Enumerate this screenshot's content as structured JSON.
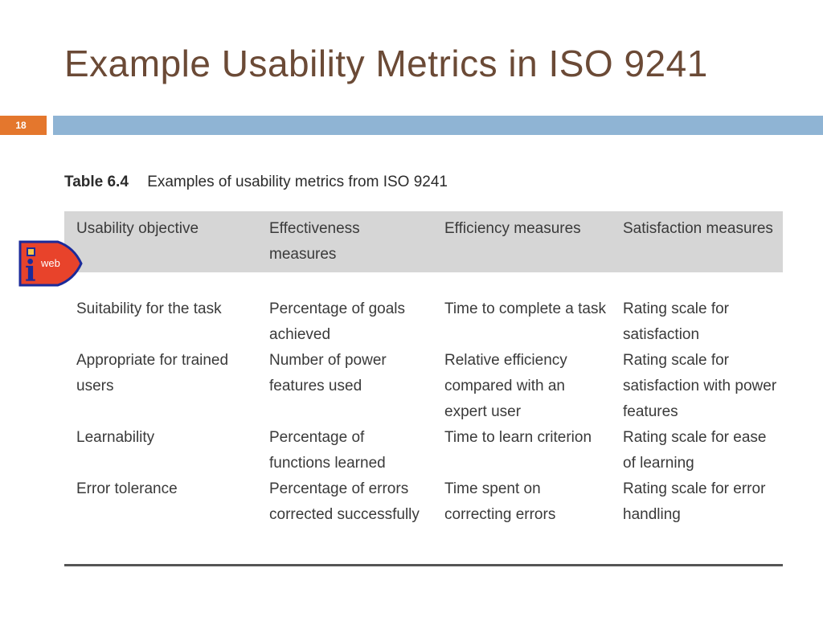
{
  "slide": {
    "title": "Example Usability Metrics in ISO 9241",
    "number": "18"
  },
  "logo": {
    "letter": "i",
    "text": "web",
    "colors": {
      "fill": "#e8432b",
      "stroke": "#1b2a9a",
      "letter": "#1b2a9a",
      "text": "#ffffff"
    }
  },
  "table": {
    "caption_label": "Table 6.4",
    "caption_text": "Examples of usability metrics from ISO 9241",
    "headers": [
      "Usability objective",
      "Effectiveness measures",
      "Efficiency measures",
      "Satisfaction measures"
    ],
    "rows": [
      [
        "Suitability for the task",
        "Percentage of goals achieved",
        "Time to complete a task",
        "Rating scale for satisfaction"
      ],
      [
        "Appropriate for trained users",
        "Number of power features used",
        "Relative efficiency compared with an expert user",
        "Rating scale for satisfaction with power features"
      ],
      [
        "Learnability",
        "Percentage of functions learned",
        "Time to learn criterion",
        "Rating scale for ease of learning"
      ],
      [
        "Error tolerance",
        "Percentage of errors corrected successfully",
        "Time spent on correcting errors",
        "Rating scale for error handling"
      ]
    ]
  },
  "colors": {
    "title": "#6b4a36",
    "number_box": "#e4772d",
    "header_bar": "#8fb4d4",
    "table_header_bg": "#d6d6d6"
  }
}
